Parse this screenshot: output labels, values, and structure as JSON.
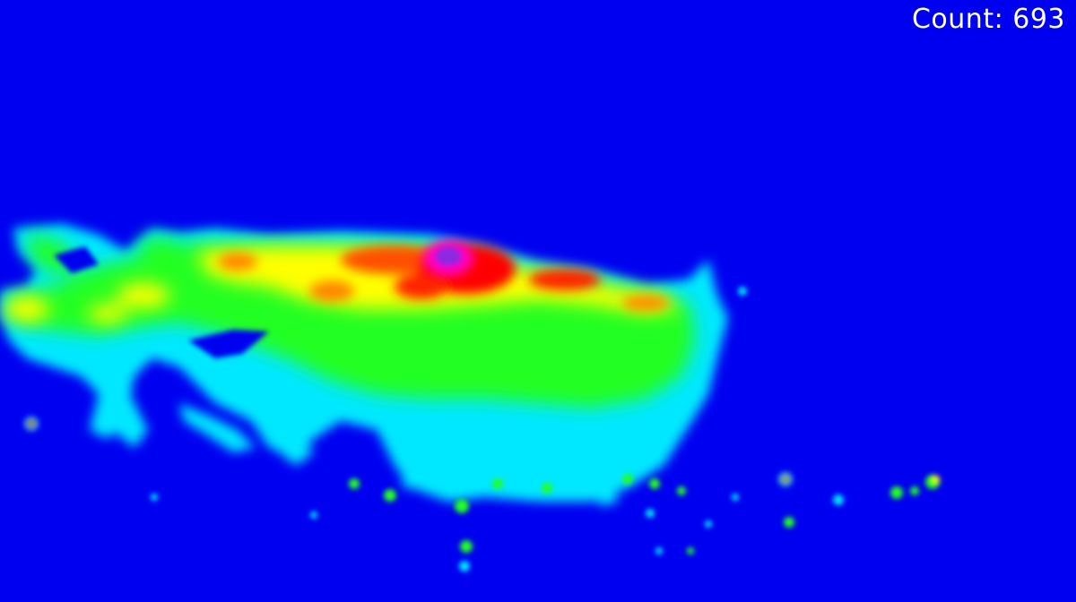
{
  "overlay": {
    "count_label": "Count:",
    "count_value": "693"
  },
  "colors": {
    "background": "#0000f0",
    "low": "#00e8ff",
    "mid": "#22ff22",
    "high": "#ffff00",
    "peak": "#ff0000",
    "core": "#8a2be2",
    "text": "#ffffff"
  }
}
